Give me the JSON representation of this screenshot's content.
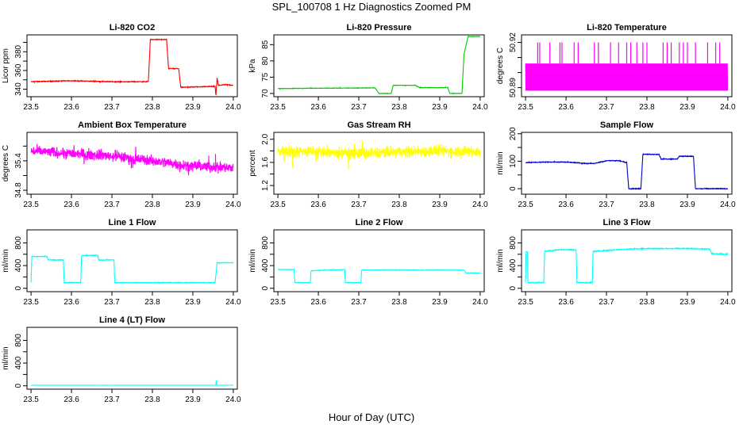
{
  "figure": {
    "title": "SPL_100708  1 Hz Diagnostics Zoomed PM",
    "xlabel": "Hour of Day (UTC)"
  },
  "chart_data": [
    {
      "type": "line",
      "title": "Li-820 CO2",
      "ylabel": "Licor ppm",
      "color": "#ff0000",
      "xlim": [
        23.49,
        24.01
      ],
      "ylim": [
        332,
        398
      ],
      "xticks": [
        "23.5",
        "23.6",
        "23.7",
        "23.8",
        "23.9",
        "24.0"
      ],
      "xtick_values": [
        23.5,
        23.6,
        23.7,
        23.8,
        23.9,
        24.0
      ],
      "yticks": [
        "340",
        "360",
        "380"
      ],
      "ytick_values": [
        340,
        360,
        380
      ],
      "extra_ytick_values": [
        350,
        370,
        390
      ],
      "noise": 0.6,
      "x": [
        23.5,
        23.6,
        23.7,
        23.79,
        23.795,
        23.835,
        23.84,
        23.865,
        23.87,
        23.955,
        23.957,
        23.96,
        23.963,
        23.98,
        24.0
      ],
      "y": [
        348,
        349,
        348,
        348,
        393,
        393,
        362,
        362,
        342,
        343,
        333,
        352,
        344,
        345,
        344
      ]
    },
    {
      "type": "line",
      "title": "Li-820 Pressure",
      "ylabel": "kPa",
      "color": "#00cc00",
      "xlim": [
        23.49,
        24.01
      ],
      "ylim": [
        69,
        88
      ],
      "xticks": [
        "23.5",
        "23.6",
        "23.7",
        "23.8",
        "23.9",
        "24.0"
      ],
      "xtick_values": [
        23.5,
        23.6,
        23.7,
        23.8,
        23.9,
        24.0
      ],
      "yticks": [
        "70",
        "75",
        "80",
        "85"
      ],
      "ytick_values": [
        70,
        75,
        80,
        85
      ],
      "noise": 0.1,
      "x": [
        23.5,
        23.6,
        23.74,
        23.75,
        23.78,
        23.785,
        23.84,
        23.85,
        23.92,
        23.925,
        23.955,
        23.96,
        23.97,
        23.98,
        24.0
      ],
      "y": [
        71.5,
        71.6,
        71.7,
        70,
        70,
        72.5,
        72.5,
        71.8,
        71.8,
        70,
        70,
        82,
        87.5,
        87.5,
        87.5
      ]
    },
    {
      "type": "line",
      "title": "Li-820 Temperature",
      "ylabel": "degrees C",
      "color": "#ff00ff",
      "xlim": [
        23.49,
        24.01
      ],
      "ylim": [
        50.884,
        50.925
      ],
      "xticks": [
        "23.5",
        "23.6",
        "23.7",
        "23.8",
        "23.9",
        "24.0"
      ],
      "xtick_values": [
        23.5,
        23.6,
        23.7,
        23.8,
        23.9,
        24.0
      ],
      "yticks": [
        "50.89",
        "50.92"
      ],
      "ytick_values": [
        50.89,
        50.92
      ],
      "extra_ytick_values": [
        50.9,
        50.91
      ],
      "base_level": 50.906,
      "base_low": 50.888,
      "spike_high": 50.92,
      "spike_x": [
        23.53,
        23.535,
        23.56,
        23.585,
        23.59,
        23.62,
        23.63,
        23.67,
        23.68,
        23.71,
        23.73,
        23.75,
        23.76,
        23.775,
        23.79,
        23.8,
        23.84,
        23.85,
        23.86,
        23.88,
        23.89,
        23.9,
        23.92,
        23.95,
        23.97,
        23.98
      ]
    },
    {
      "type": "line",
      "title": "Ambient Box Temperature",
      "ylabel": "degrees C",
      "color": "#ff00ff",
      "xlim": [
        23.49,
        24.01
      ],
      "ylim": [
        34.72,
        35.98
      ],
      "xticks": [
        "23.5",
        "23.6",
        "23.7",
        "23.8",
        "23.9",
        "24.0"
      ],
      "xtick_values": [
        23.5,
        23.6,
        23.7,
        23.8,
        23.9,
        24.0
      ],
      "yticks": [
        "34.8",
        "35.4"
      ],
      "ytick_values": [
        34.8,
        35.4
      ],
      "extra_ytick_values": [
        35.1,
        35.7
      ],
      "noise": 0.16,
      "x": [
        23.5,
        23.6,
        23.7,
        23.8,
        23.9,
        24.0
      ],
      "y": [
        35.6,
        35.55,
        35.5,
        35.4,
        35.3,
        35.25
      ]
    },
    {
      "type": "line",
      "title": "Gas Stream RH",
      "ylabel": "percent",
      "color": "#ffff00",
      "xlim": [
        23.49,
        24.01
      ],
      "ylim": [
        1.05,
        2.12
      ],
      "xticks": [
        "23.5",
        "23.6",
        "23.7",
        "23.8",
        "23.9",
        "24.0"
      ],
      "xtick_values": [
        23.5,
        23.6,
        23.7,
        23.8,
        23.9,
        24.0
      ],
      "yticks": [
        "1.2",
        "1.6",
        "2.0"
      ],
      "ytick_values": [
        1.2,
        1.6,
        2.0
      ],
      "extra_ytick_values": [
        1.4,
        1.8
      ],
      "noise": 0.15,
      "x": [
        23.5,
        23.6,
        23.7,
        23.8,
        23.9,
        24.0
      ],
      "y": [
        1.8,
        1.78,
        1.75,
        1.78,
        1.8,
        1.78
      ]
    },
    {
      "type": "line",
      "title": "Sample Flow",
      "ylabel": "ml/min",
      "color": "#0000cc",
      "xlim": [
        23.49,
        24.01
      ],
      "ylim": [
        -20,
        205
      ],
      "xticks": [
        "23.5",
        "23.6",
        "23.7",
        "23.8",
        "23.9",
        "24.0"
      ],
      "xtick_values": [
        23.5,
        23.6,
        23.7,
        23.8,
        23.9,
        24.0
      ],
      "yticks": [
        "0",
        "100",
        "200"
      ],
      "ytick_values": [
        0,
        100,
        200
      ],
      "extra_ytick_values": [
        50,
        150
      ],
      "noise": 2,
      "x": [
        23.5,
        23.55,
        23.6,
        23.65,
        23.67,
        23.7,
        23.73,
        23.75,
        23.755,
        23.785,
        23.79,
        23.83,
        23.835,
        23.875,
        23.88,
        23.915,
        23.92,
        24.0
      ],
      "y": [
        95,
        97,
        97,
        92,
        92,
        102,
        102,
        95,
        0,
        0,
        125,
        125,
        108,
        108,
        118,
        118,
        0,
        0
      ]
    },
    {
      "type": "line",
      "title": "Line 1 Flow",
      "ylabel": "ml/min",
      "color": "#00ffff",
      "xlim": [
        23.49,
        24.01
      ],
      "ylim": [
        -60,
        1030
      ],
      "xticks": [
        "23.5",
        "23.6",
        "23.7",
        "23.8",
        "23.9",
        "24.0"
      ],
      "xtick_values": [
        23.5,
        23.6,
        23.7,
        23.8,
        23.9,
        24.0
      ],
      "yticks": [
        "0",
        "400",
        "800"
      ],
      "ytick_values": [
        0,
        400,
        800
      ],
      "extra_ytick_values": [
        200,
        600
      ],
      "noise": 8,
      "x": [
        23.5,
        23.502,
        23.54,
        23.542,
        23.58,
        23.582,
        23.623,
        23.625,
        23.665,
        23.667,
        23.705,
        23.707,
        23.955,
        23.96,
        24.0
      ],
      "y": [
        100,
        560,
        560,
        500,
        500,
        100,
        100,
        580,
        580,
        500,
        500,
        100,
        100,
        450,
        450
      ]
    },
    {
      "type": "line",
      "title": "Line 2 Flow",
      "ylabel": "ml/min",
      "color": "#00ffff",
      "xlim": [
        23.49,
        24.01
      ],
      "ylim": [
        -60,
        1030
      ],
      "xticks": [
        "23.5",
        "23.6",
        "23.7",
        "23.8",
        "23.9",
        "24.0"
      ],
      "xtick_values": [
        23.5,
        23.6,
        23.7,
        23.8,
        23.9,
        24.0
      ],
      "yticks": [
        "0",
        "400",
        "800"
      ],
      "ytick_values": [
        0,
        400,
        800
      ],
      "extra_ytick_values": [
        200,
        600
      ],
      "noise": 6,
      "x": [
        23.5,
        23.54,
        23.542,
        23.58,
        23.582,
        23.665,
        23.667,
        23.705,
        23.707,
        23.96,
        23.965,
        24.0
      ],
      "y": [
        330,
        330,
        100,
        100,
        310,
        330,
        100,
        100,
        320,
        320,
        270,
        270
      ]
    },
    {
      "type": "line",
      "title": "Line 3 Flow",
      "ylabel": "ml/min",
      "color": "#00ffff",
      "xlim": [
        23.49,
        24.01
      ],
      "ylim": [
        -60,
        1030
      ],
      "xticks": [
        "23.5",
        "23.6",
        "23.7",
        "23.8",
        "23.9",
        "24.0"
      ],
      "xtick_values": [
        23.5,
        23.6,
        23.7,
        23.8,
        23.9,
        24.0
      ],
      "yticks": [
        "0",
        "400",
        "800"
      ],
      "ytick_values": [
        0,
        400,
        800
      ],
      "extra_ytick_values": [
        200,
        600
      ],
      "noise": 12,
      "x": [
        23.5,
        23.501,
        23.505,
        23.506,
        23.545,
        23.547,
        23.58,
        23.625,
        23.627,
        23.665,
        23.667,
        23.75,
        23.8,
        23.9,
        23.955,
        23.96,
        24.0
      ],
      "y": [
        100,
        640,
        640,
        100,
        100,
        650,
        680,
        680,
        100,
        100,
        650,
        690,
        700,
        700,
        690,
        610,
        600
      ]
    },
    {
      "type": "line",
      "title": "Line 4 (LT) Flow",
      "ylabel": "ml/min",
      "color": "#00ffff",
      "xlim": [
        23.49,
        24.01
      ],
      "ylim": [
        -60,
        1030
      ],
      "xticks": [
        "23.5",
        "23.6",
        "23.7",
        "23.8",
        "23.9",
        "24.0"
      ],
      "xtick_values": [
        23.5,
        23.6,
        23.7,
        23.8,
        23.9,
        24.0
      ],
      "yticks": [
        "0",
        "400",
        "800"
      ],
      "ytick_values": [
        0,
        400,
        800
      ],
      "extra_ytick_values": [
        200,
        600
      ],
      "noise": 2,
      "x": [
        23.5,
        23.957,
        23.958,
        23.959,
        23.96,
        24.0
      ],
      "y": [
        10,
        10,
        120,
        10,
        10,
        10
      ]
    }
  ]
}
